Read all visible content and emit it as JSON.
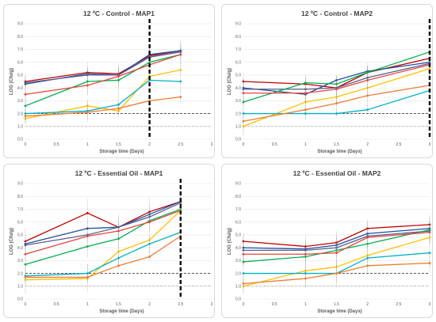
{
  "colors": {
    "series": [
      "#c00000",
      "#1f4e9e",
      "#5b5b8f",
      "#00b050",
      "#e8433a",
      "#ffc000",
      "#00b0c8",
      "#ed7d31"
    ],
    "limit_2": "#404040",
    "limit_1": "#a6a6a6",
    "cutoff": "#000000",
    "error_bar": "#8c8c8c"
  },
  "chart_data": [
    {
      "type": "line",
      "title": "12 ºC - Control - MAP1",
      "xlabel": "Storage time (Days)",
      "ylabel": "LOG (Cfu/g)",
      "xlim": [
        0,
        3
      ],
      "ylim": [
        0,
        9
      ],
      "x_ticks": [
        "0",
        "0.5",
        "1",
        "1.5",
        "2",
        "2.5",
        "3"
      ],
      "y_ticks": [
        "0.0",
        "1.0",
        "2.0",
        "3.0",
        "4.0",
        "5.0",
        "6.0",
        "7.0",
        "8.0",
        "9.0"
      ],
      "x": [
        0,
        1,
        1.5,
        2,
        2.5
      ],
      "cutoff_x": 2,
      "limit_lines": [
        2.0,
        1.0
      ],
      "series": [
        {
          "values": [
            4.5,
            5.2,
            5.1,
            6.5,
            6.9
          ]
        },
        {
          "values": [
            4.3,
            5.1,
            5.0,
            6.6,
            6.9
          ]
        },
        {
          "values": [
            4.4,
            5.0,
            5.0,
            6.4,
            6.8
          ]
        },
        {
          "values": [
            2.6,
            4.5,
            4.6,
            6.0,
            6.6
          ]
        },
        {
          "values": [
            3.5,
            4.2,
            4.9,
            5.8,
            6.6
          ]
        },
        {
          "values": [
            1.6,
            2.6,
            2.2,
            4.9,
            5.4
          ]
        },
        {
          "values": [
            2.0,
            2.2,
            2.7,
            4.6,
            4.5
          ]
        },
        {
          "values": [
            1.8,
            2.1,
            2.4,
            3.0,
            3.3
          ]
        }
      ]
    },
    {
      "type": "line",
      "title": "12 ºC - Control - MAP2",
      "xlabel": "Storage time (Days)",
      "ylabel": "LOG (Cfu/g)",
      "xlim": [
        0,
        3
      ],
      "ylim": [
        0,
        9
      ],
      "x_ticks": [
        "0",
        "0.5",
        "1",
        "1.5",
        "2",
        "2.5",
        "3"
      ],
      "y_ticks": [
        "0.0",
        "1.0",
        "2.0",
        "3.0",
        "4.0",
        "5.0",
        "6.0",
        "7.0",
        "8.0",
        "9.0"
      ],
      "x": [
        0,
        1,
        1.5,
        2,
        3
      ],
      "cutoff_x": 3,
      "limit_lines": [
        2.0,
        1.0
      ],
      "series": [
        {
          "values": [
            4.5,
            4.3,
            4.0,
            5.2,
            6.3
          ]
        },
        {
          "values": [
            4.0,
            3.5,
            4.6,
            5.3,
            6.0
          ]
        },
        {
          "values": [
            3.9,
            3.9,
            4.0,
            4.8,
            5.9
          ]
        },
        {
          "values": [
            2.9,
            4.4,
            4.3,
            5.2,
            6.8
          ]
        },
        {
          "values": [
            3.6,
            3.6,
            3.9,
            4.6,
            5.8
          ]
        },
        {
          "values": [
            1.0,
            2.9,
            3.3,
            4.0,
            5.5
          ]
        },
        {
          "values": [
            2.0,
            2.0,
            2.0,
            2.3,
            3.8
          ]
        },
        {
          "values": [
            1.4,
            2.3,
            2.8,
            3.4,
            4.2
          ]
        }
      ]
    },
    {
      "type": "line",
      "title": "12 ºC - Essential Oil - MAP1",
      "xlabel": "Storage time (Days)",
      "ylabel": "LOG (Cfu/g)",
      "xlim": [
        0,
        3
      ],
      "ylim": [
        0,
        9
      ],
      "x_ticks": [
        "0",
        "0.5",
        "1",
        "1.5",
        "2",
        "2.5",
        "3"
      ],
      "y_ticks": [
        "0.0",
        "1.0",
        "2.0",
        "3.0",
        "4.0",
        "5.0",
        "6.0",
        "7.0",
        "8.0",
        "9.0"
      ],
      "x": [
        0,
        1,
        1.5,
        2,
        2.5
      ],
      "cutoff_x": 2.5,
      "limit_lines": [
        2.0,
        1.0
      ],
      "series": [
        {
          "values": [
            4.5,
            6.7,
            5.6,
            6.8,
            7.6
          ]
        },
        {
          "values": [
            4.3,
            5.5,
            5.6,
            6.6,
            7.6
          ]
        },
        {
          "values": [
            4.2,
            5.0,
            5.6,
            6.4,
            7.5
          ]
        },
        {
          "values": [
            2.7,
            4.1,
            4.7,
            6.1,
            7.0
          ]
        },
        {
          "values": [
            3.5,
            4.9,
            5.3,
            6.0,
            6.9
          ]
        },
        {
          "values": [
            1.5,
            1.6,
            3.7,
            4.6,
            6.9
          ]
        },
        {
          "values": [
            1.8,
            2.0,
            3.2,
            4.3,
            5.2
          ]
        },
        {
          "values": [
            1.7,
            1.7,
            2.6,
            3.3,
            4.9
          ]
        }
      ]
    },
    {
      "type": "line",
      "title": "12 ºC - Essential Oil - MAP2",
      "xlabel": "Storage time (Days)",
      "ylabel": "LOG (Cfu/g)",
      "xlim": [
        0,
        3
      ],
      "ylim": [
        0,
        9
      ],
      "x_ticks": [
        "0",
        "0.5",
        "1",
        "1.5",
        "2",
        "2.5",
        "3"
      ],
      "y_ticks": [
        "0.0",
        "1.0",
        "2.0",
        "3.0",
        "4.0",
        "5.0",
        "6.0",
        "7.0",
        "8.0",
        "9.0"
      ],
      "x": [
        0,
        1,
        1.5,
        2,
        3
      ],
      "cutoff_x": null,
      "limit_lines": [
        2.0,
        1.0
      ],
      "series": [
        {
          "values": [
            4.5,
            4.1,
            4.4,
            5.5,
            5.8
          ]
        },
        {
          "values": [
            4.0,
            3.9,
            4.2,
            5.1,
            5.5
          ]
        },
        {
          "values": [
            3.8,
            3.8,
            4.0,
            4.9,
            5.3
          ]
        },
        {
          "values": [
            2.9,
            3.3,
            3.8,
            4.3,
            5.4
          ]
        },
        {
          "values": [
            3.5,
            3.5,
            3.6,
            4.8,
            5.2
          ]
        },
        {
          "values": [
            1.0,
            2.2,
            2.5,
            3.4,
            4.8
          ]
        },
        {
          "values": [
            2.0,
            2.0,
            2.0,
            3.2,
            3.6
          ]
        },
        {
          "values": [
            1.2,
            1.6,
            2.0,
            2.6,
            2.8
          ]
        }
      ]
    }
  ]
}
